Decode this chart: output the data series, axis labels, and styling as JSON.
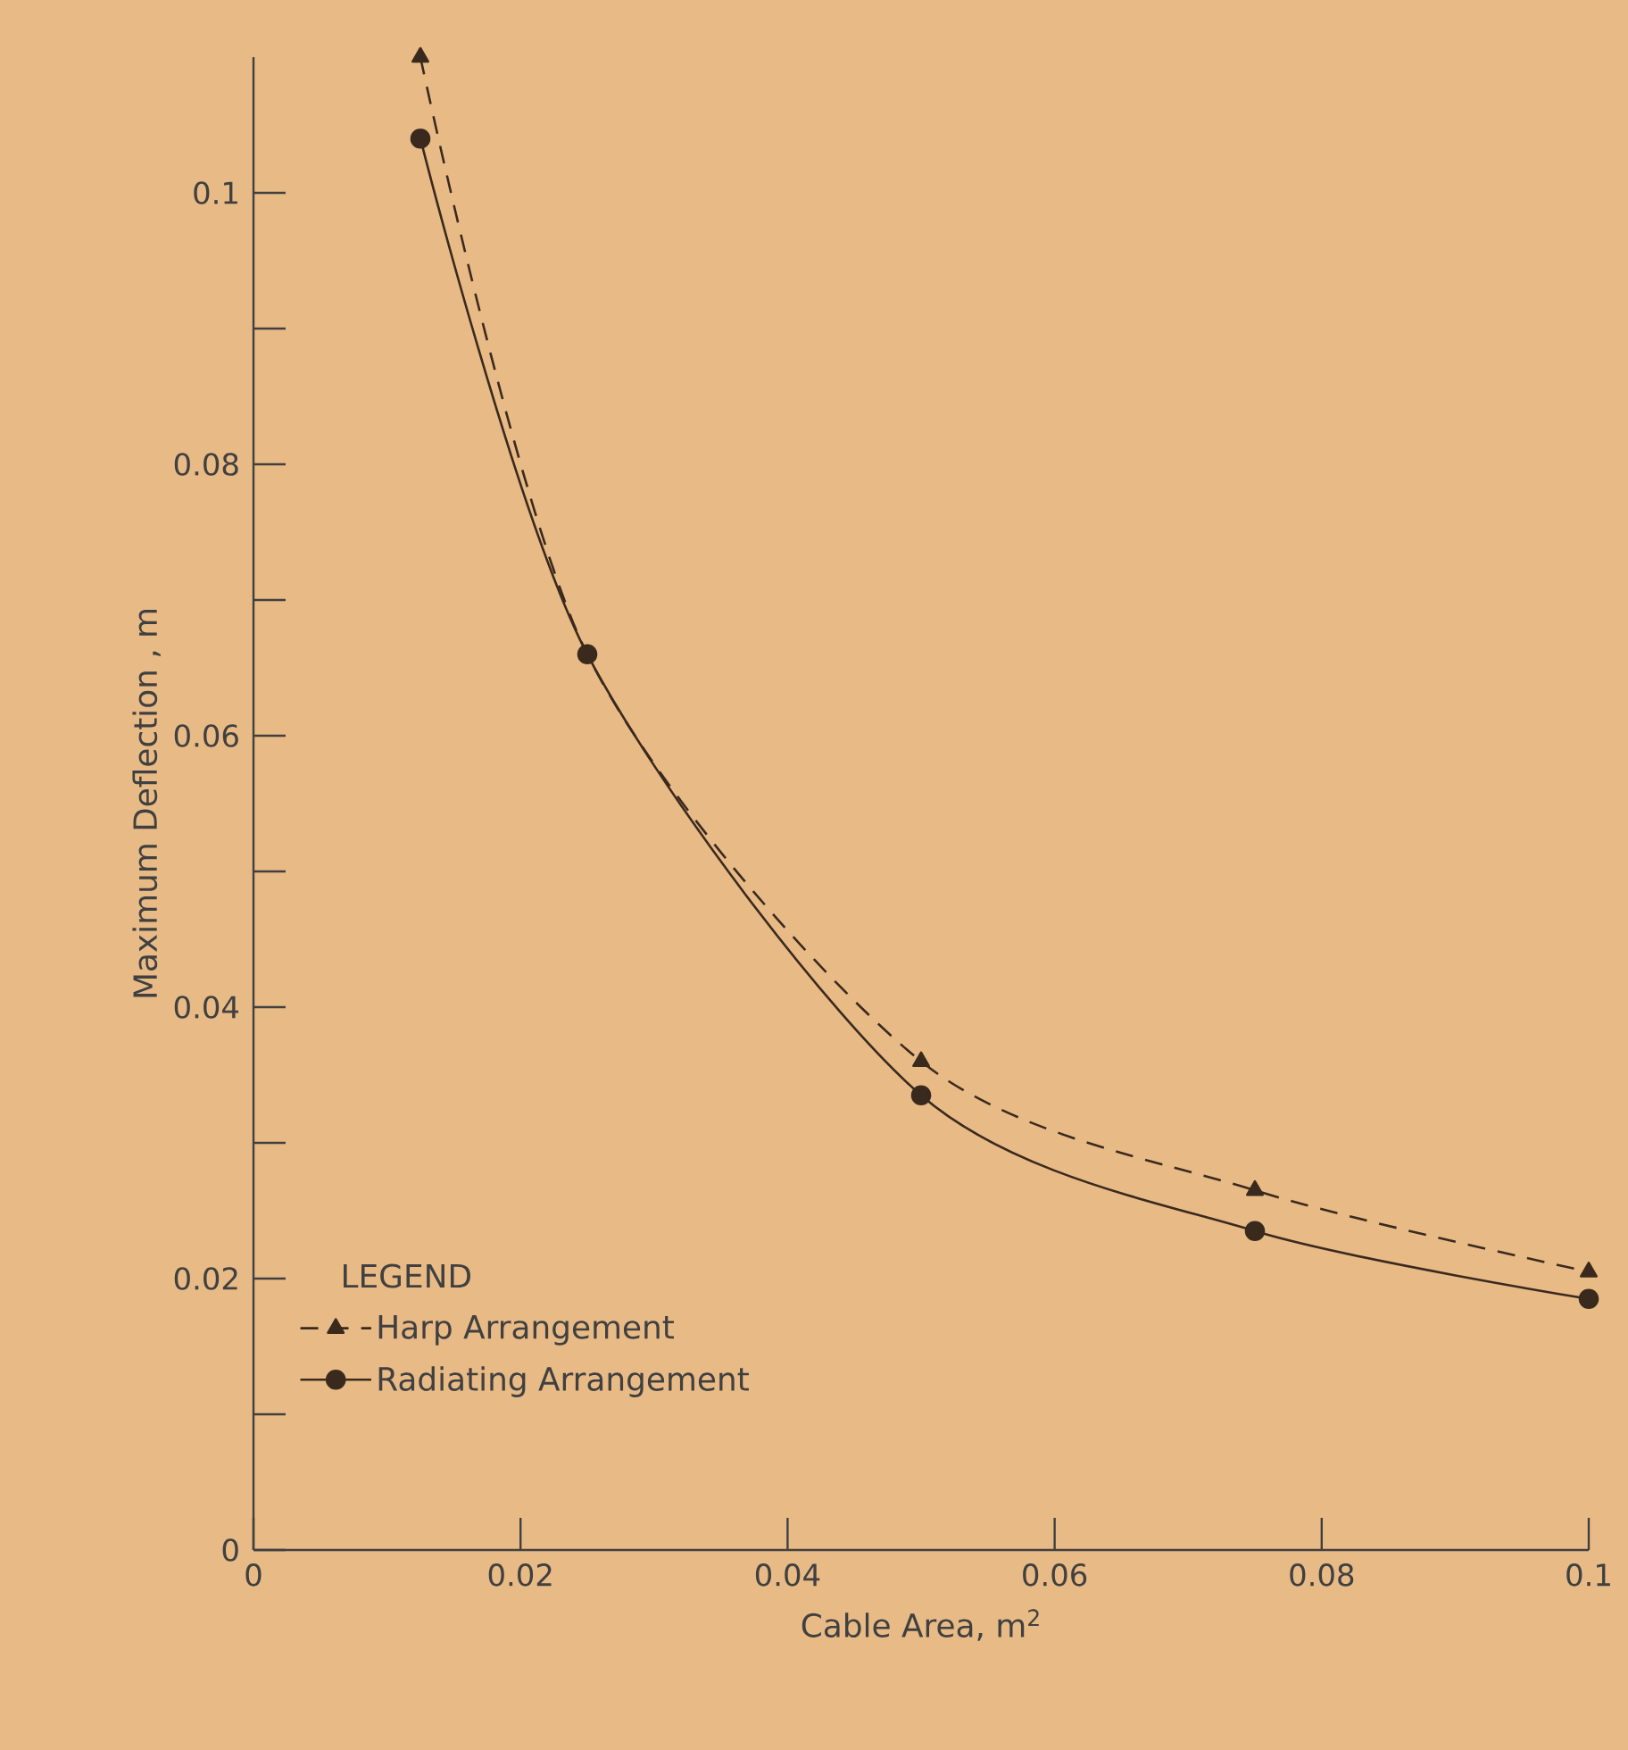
{
  "chart_data": {
    "type": "line",
    "xlabel": "Cable Area, m$^{2}$",
    "ylabel": "Maximum Deflection , m",
    "legend_title": "LEGEND",
    "x": [
      0.0125,
      0.025,
      0.05,
      0.075,
      0.1
    ],
    "series": [
      {
        "name": "Harp Arrangement",
        "color": "#3a2a1e",
        "values": [
          0.11,
          0.066,
          0.036,
          0.0265,
          0.0205
        ],
        "marker": "triangle",
        "line_style": "dashed"
      },
      {
        "name": "Radiating Arrangement",
        "color": "#3a2a1e",
        "values": [
          0.104,
          0.066,
          0.0335,
          0.0235,
          0.0185
        ],
        "marker": "circle",
        "line_style": "solid"
      }
    ],
    "xlim": [
      0,
      0.1
    ],
    "ylim": [
      0,
      0.11
    ],
    "xticks": [
      0,
      0.02,
      0.04,
      0.06,
      0.08,
      0.1
    ],
    "yticks": [
      0,
      0.02,
      0.04,
      0.06,
      0.08,
      0.1
    ],
    "grid": false,
    "legend": "bottom left"
  }
}
